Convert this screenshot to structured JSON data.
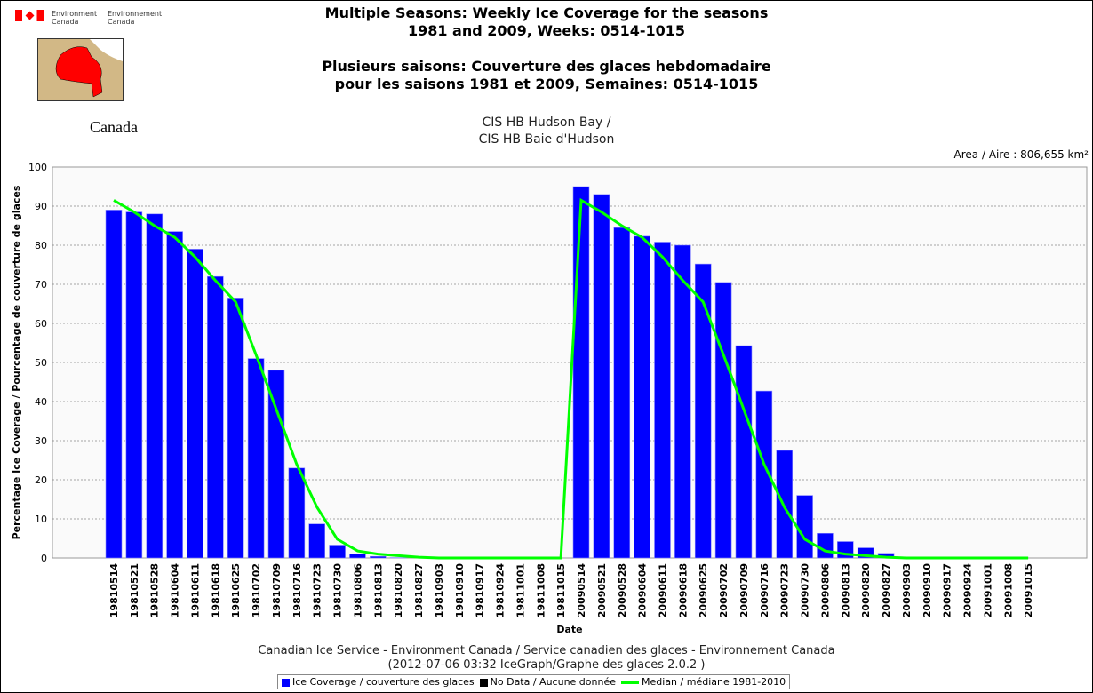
{
  "header": {
    "dept_en": "Environment Canada",
    "dept_fr": "Environnement Canada",
    "wordmark": "Canada"
  },
  "chart_data": {
    "type": "bar",
    "title": "Multiple Seasons: Weekly Ice Coverage for the seasons",
    "title_line2": "1981 and 2009, Weeks: 0514-1015",
    "title_fr": "Plusieurs saisons: Couverture des glaces hebdomadaire",
    "title_fr_line2": "pour les saisons 1981 et 2009, Semaines: 0514-1015",
    "subtitle": "CIS HB Hudson Bay /",
    "subtitle2": "CIS HB Baie d'Hudson",
    "area": "Area / Aire : 806,655 km²",
    "xlabel": "Date",
    "ylabel": "Percentage Ice Coverage / Pourcentage de couverture de glaces",
    "ylim": [
      0,
      100
    ],
    "yticks": [
      0,
      10,
      20,
      30,
      40,
      50,
      60,
      70,
      80,
      90,
      100
    ],
    "categories": [
      "19810514",
      "19810521",
      "19810528",
      "19810604",
      "19810611",
      "19810618",
      "19810625",
      "19810702",
      "19810709",
      "19810716",
      "19810723",
      "19810730",
      "19810806",
      "19810813",
      "19810820",
      "19810827",
      "19810903",
      "19810910",
      "19810917",
      "19810924",
      "19811001",
      "19811008",
      "19811015",
      "20090514",
      "20090521",
      "20090528",
      "20090604",
      "20090611",
      "20090618",
      "20090625",
      "20090702",
      "20090709",
      "20090716",
      "20090723",
      "20090730",
      "20090806",
      "20090813",
      "20090820",
      "20090827",
      "20090903",
      "20090910",
      "20090917",
      "20090924",
      "20091001",
      "20091008",
      "20091015"
    ],
    "series": [
      {
        "name": "Ice Coverage / couverture des glaces",
        "color": "#0000ff",
        "values": [
          89,
          88.5,
          88,
          83.5,
          79,
          72,
          66.5,
          51,
          48,
          23,
          8.7,
          3.3,
          1,
          0.4,
          0.1,
          0,
          0,
          0,
          0,
          0,
          0,
          0,
          0,
          95,
          93,
          84.5,
          82.3,
          80.8,
          80,
          75.2,
          70.5,
          54.3,
          42.7,
          27.5,
          16,
          6.3,
          4.2,
          2.6,
          1.2,
          0,
          0,
          0,
          0,
          0,
          0,
          0
        ]
      },
      {
        "name": "Median / médiane 1981-2010",
        "color": "#00ff00",
        "type": "line",
        "values": [
          91.5,
          88.5,
          85,
          82,
          77,
          71,
          65.5,
          52,
          38,
          24,
          13,
          4.8,
          1.8,
          1,
          0.6,
          0.2,
          0,
          0,
          0,
          0,
          0,
          0,
          0,
          91.5,
          88.5,
          85,
          82,
          77,
          71,
          65.5,
          52,
          38,
          24,
          13,
          4.8,
          1.8,
          1,
          0.6,
          0.2,
          0,
          0,
          0,
          0,
          0,
          0,
          0
        ]
      }
    ],
    "legend": [
      "Ice Coverage / couverture des glaces",
      "No Data / Aucune donnée",
      "Median / médiane 1981-2010"
    ],
    "legend_placement": "bottom"
  },
  "footer": {
    "line1": "Canadian Ice Service - Environment Canada / Service canadien des glaces - Environnement Canada",
    "line2": "(2012-07-06 03:32 IceGraph/Graphe des glaces 2.0.2 )"
  }
}
